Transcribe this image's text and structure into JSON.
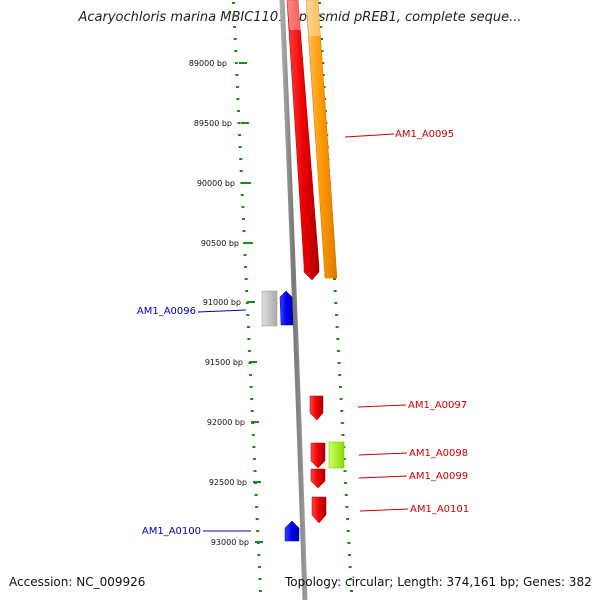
{
  "title": "Acaryochloris marina MBIC11017 plasmid pREB1, complete seque...",
  "footer": {
    "accession": "Accession: NC_009926",
    "summary": "Topology: circular; Length: 374,161 bp; Genes: 382"
  },
  "ticks": [
    "89000 bp",
    "89500 bp",
    "90000 bp",
    "90500 bp",
    "91000 bp",
    "91500 bp",
    "92000 bp",
    "92500 bp",
    "93000 bp"
  ],
  "genes": [
    {
      "name": "AM1_A0095",
      "color": "#cc0000"
    },
    {
      "name": "AM1_A0096",
      "color": "#0000bb"
    },
    {
      "name": "AM1_A0097",
      "color": "#cc0000"
    },
    {
      "name": "AM1_A0098",
      "color": "#cc0000"
    },
    {
      "name": "AM1_A0099",
      "color": "#cc0000"
    },
    {
      "name": "AM1_A0100",
      "color": "#0000bb"
    },
    {
      "name": "AM1_A0101",
      "color": "#cc0000"
    }
  ],
  "colors": {
    "backbone": "#888888",
    "forward_gene": "#ee0000",
    "reverse_gene": "#0000ee",
    "feature_orange": "#ff9900",
    "feature_gray": "#bbbbbb",
    "feature_green": "#99ee00",
    "tick_dots": "#1a8a1a"
  }
}
